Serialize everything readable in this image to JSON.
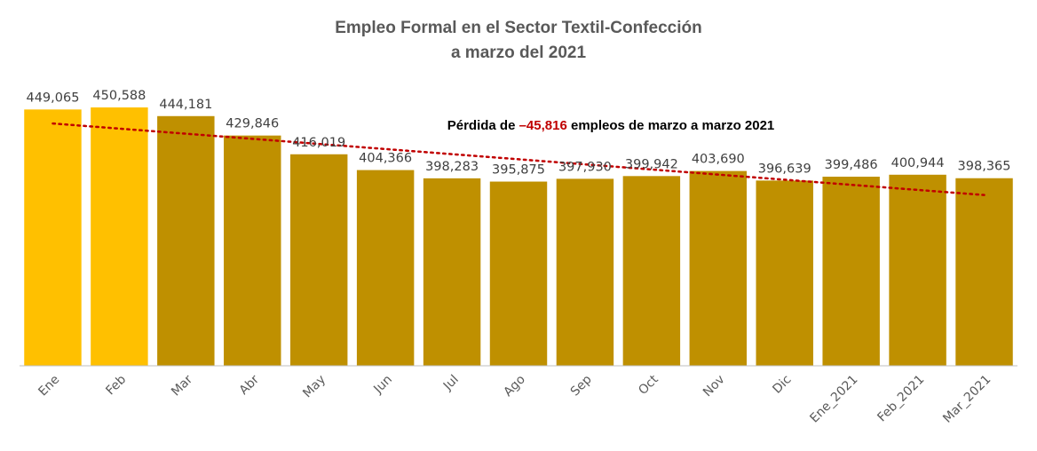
{
  "chart_data": {
    "type": "bar",
    "title_line1": "Empleo Formal en el Sector Textil-Confección",
    "title_line2": "a marzo del 2021",
    "annotation": {
      "prefix": "Pérdida de ",
      "highlight": "–45,816",
      "suffix": " empleos de marzo a marzo 2021"
    },
    "categories": [
      "Ene",
      "Feb",
      "Mar",
      "Abr",
      "May",
      "Jun",
      "Jul",
      "Ago",
      "Sep",
      "Oct",
      "Nov",
      "Dic",
      "Ene_2021",
      "Feb_2021",
      "Mar_2021"
    ],
    "values": [
      449065,
      450588,
      444181,
      429846,
      416019,
      404366,
      398283,
      395875,
      397930,
      399942,
      403690,
      396639,
      399486,
      400944,
      398365
    ],
    "labels": [
      "449,065",
      "450,588",
      "444,181",
      "429,846",
      "416,019",
      "404,366",
      "398,283",
      "395,875",
      "397,930",
      "399,942",
      "403,690",
      "396,639",
      "399,486",
      "400,944",
      "398,365"
    ],
    "highlight_count": 2,
    "colors": {
      "highlight": "#ffc000",
      "bar": "#bf9000",
      "trendline": "#c00000",
      "axis": "#bfbfbf",
      "title": "#595959",
      "annotation_highlight": "#c00000"
    },
    "trendline": {
      "type": "linear",
      "style": "dotted"
    },
    "ylim": [
      260000,
      460000
    ],
    "grid": false,
    "legend": "none"
  }
}
